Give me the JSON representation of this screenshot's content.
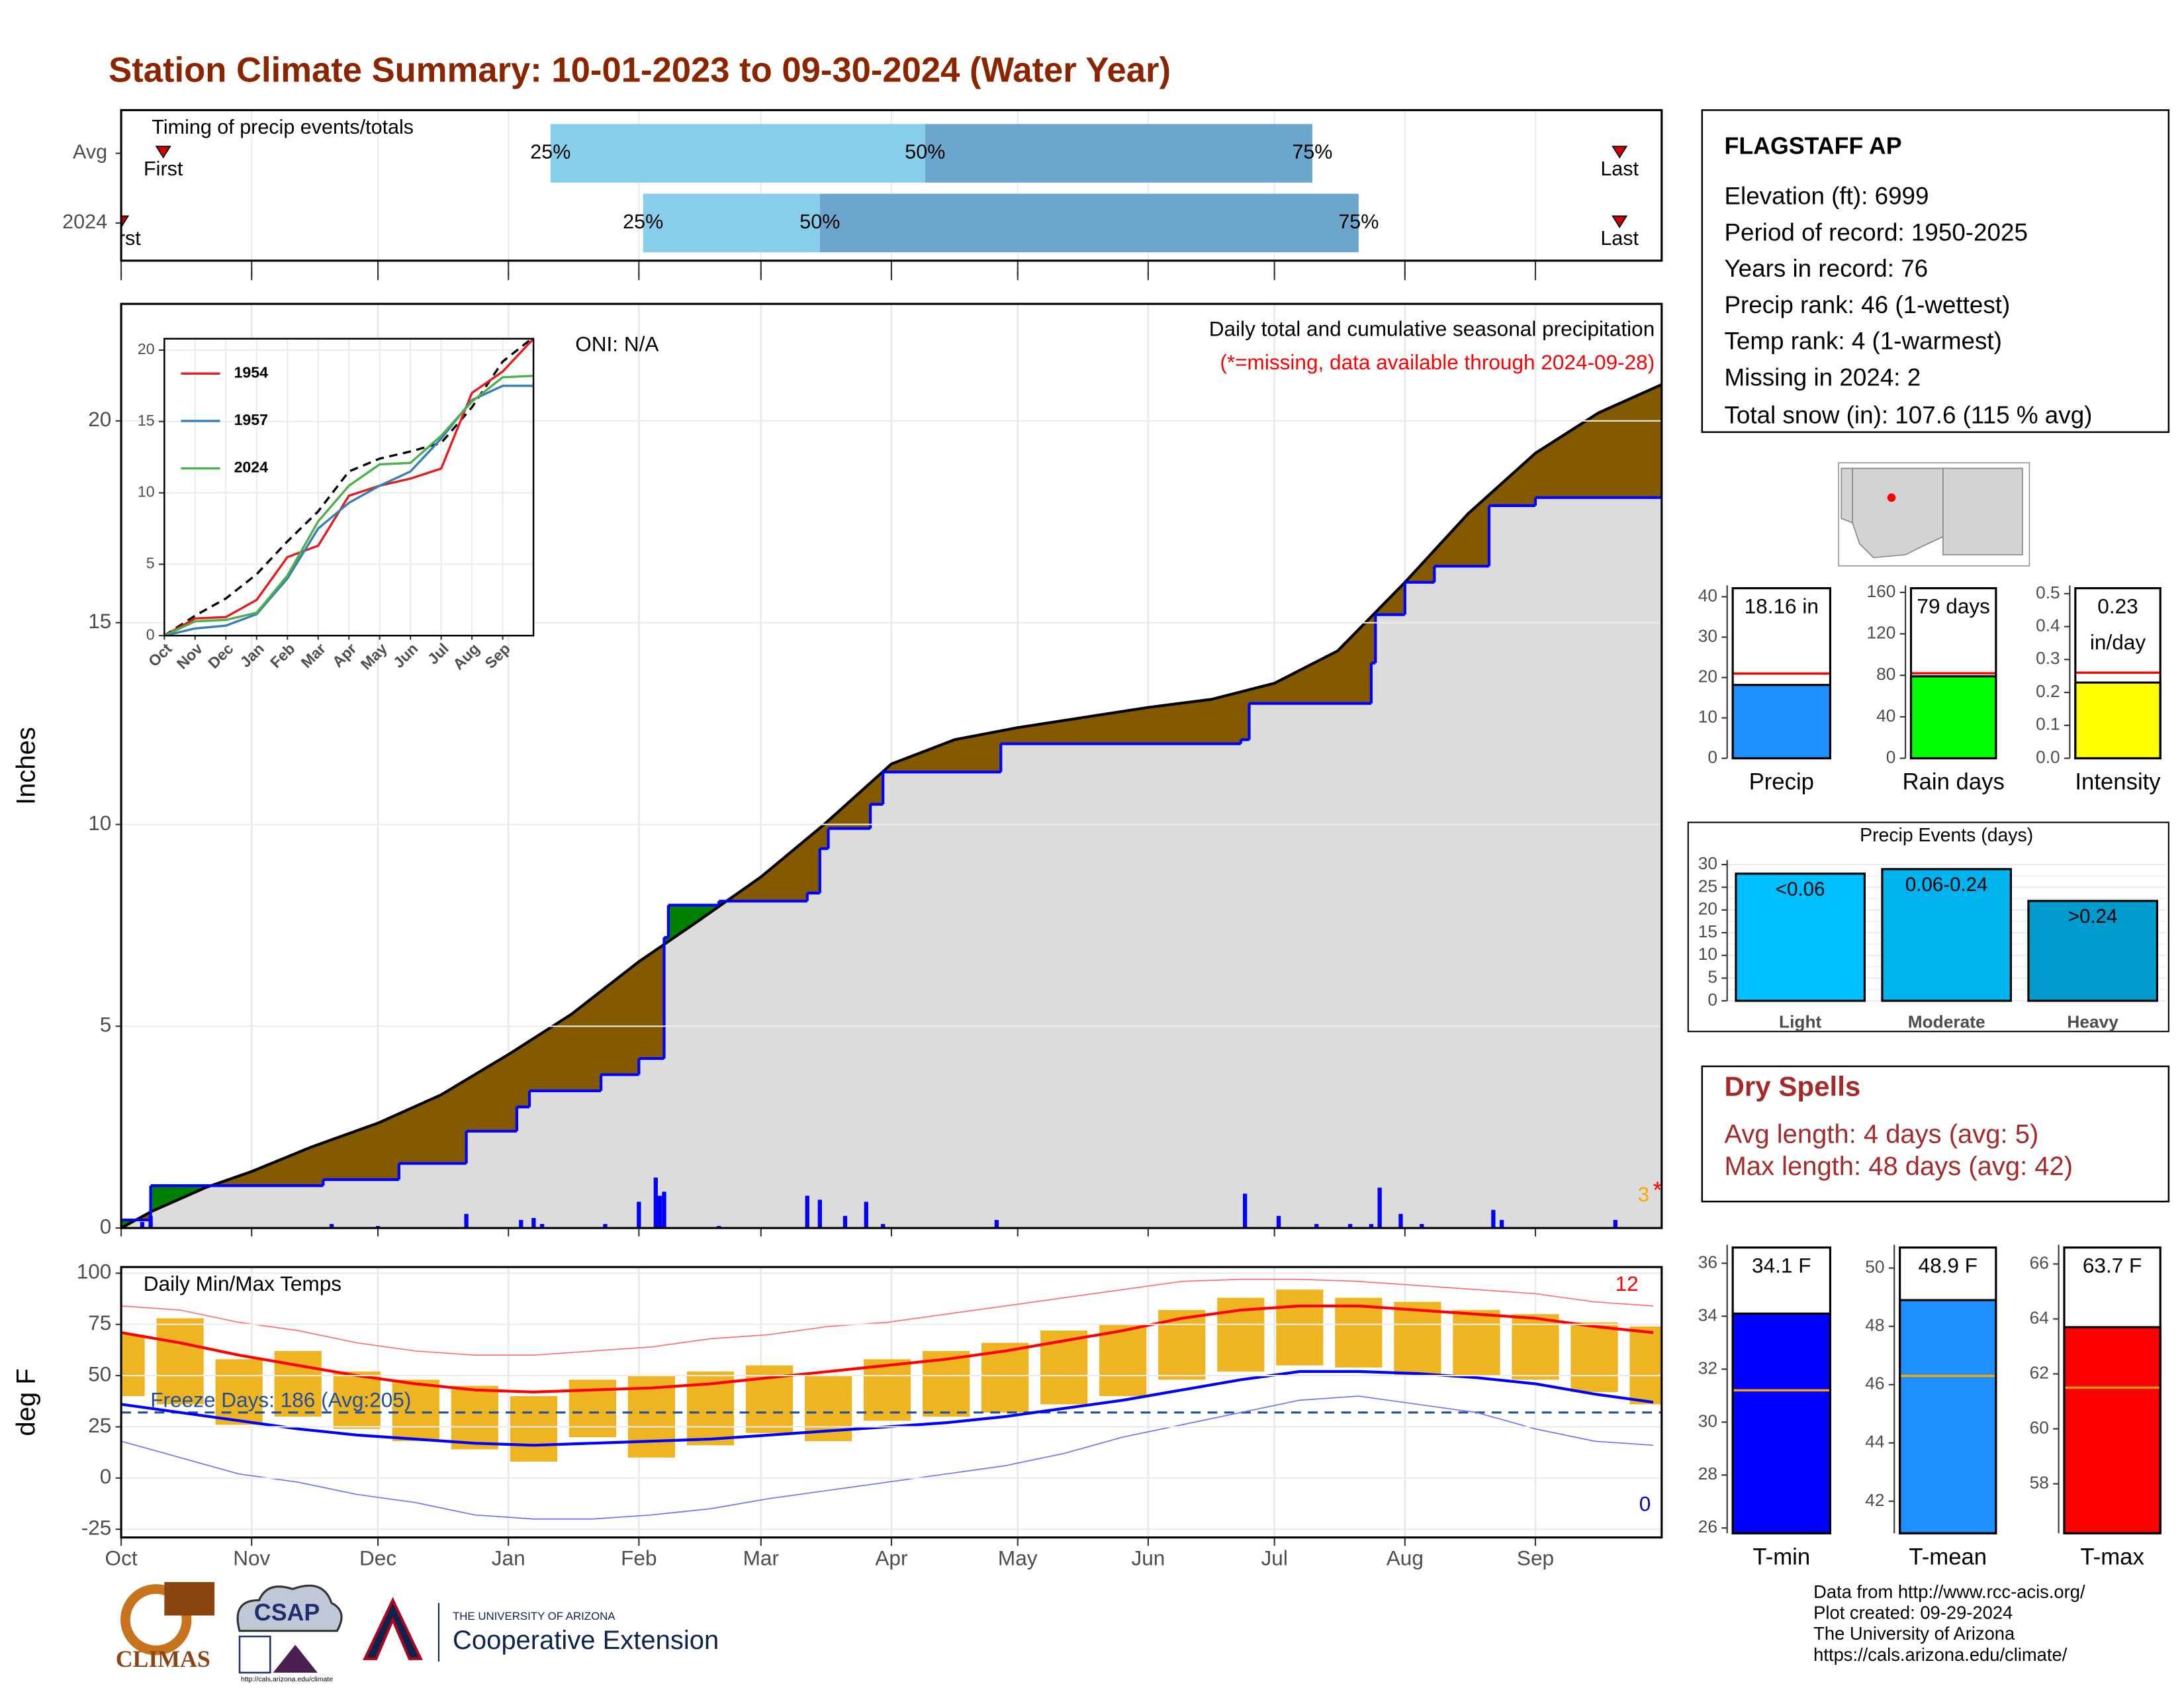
{
  "title": "Station Climate Summary: 10-01-2023 to 09-30-2024 (Water Year)",
  "chart_data": [
    {
      "type": "timeline",
      "title": "Timing of precip events/totals",
      "xlim": [
        0,
        366
      ],
      "xticks": [
        0,
        31,
        61,
        92,
        123,
        152,
        183,
        213,
        244,
        274,
        305,
        336
      ],
      "grid": true,
      "colors": [
        "#87ceeb",
        "#6ca6cd"
      ],
      "marker_color": "#cc0000",
      "labels": {
        "first": "First",
        "last": "Last",
        "p25": "25%",
        "p50": "50%",
        "p75": "75%"
      },
      "rows": [
        {
          "name": "Avg",
          "first": 10,
          "p25": 102,
          "p50": 191,
          "p75": 283,
          "last": 356
        },
        {
          "name": "2024",
          "first": 0,
          "p25": 124,
          "p50": 166,
          "p75": 294,
          "last": 356
        }
      ]
    },
    {
      "type": "cumulative",
      "y_label": "Inches",
      "oni": "ONI: N/A",
      "subtitle": "Daily total and cumulative seasonal precipitation",
      "missing_note": "(*=missing, data available through 2024-09-28)",
      "missing_count": "3",
      "missing_mark": "*",
      "xlim": [
        0,
        366
      ],
      "xticks": [
        0,
        31,
        61,
        92,
        123,
        152,
        183,
        213,
        244,
        274,
        305,
        336
      ],
      "ylim": [
        0,
        22.9
      ],
      "yticks": [
        0,
        5,
        10,
        15,
        20
      ],
      "grid": true,
      "colors": {
        "deficit": "#845a00",
        "surplus": "#008000",
        "base": "#dcdcdc"
      },
      "series": [
        {
          "kind": "average",
          "color": "#000000",
          "x": [
            0,
            7,
            20,
            31,
            45,
            61,
            76,
            92,
            107,
            123,
            137,
            152,
            167,
            183,
            198,
            213,
            244,
            259,
            274,
            289,
            305,
            320,
            336,
            351,
            366
          ],
          "values": [
            0,
            0.4,
            1.0,
            1.4,
            2.0,
            2.6,
            3.3,
            4.3,
            5.3,
            6.6,
            7.6,
            8.7,
            10.0,
            11.5,
            12.1,
            12.4,
            12.9,
            13.1,
            13.5,
            14.3,
            16.0,
            17.7,
            19.2,
            20.2,
            20.9
          ]
        },
        {
          "kind": "step",
          "color": "#0000ff",
          "x": [
            0,
            7,
            48,
            66,
            82,
            94,
            97,
            114,
            123,
            129,
            130,
            142,
            163,
            166,
            168,
            178,
            181,
            209,
            266,
            268,
            297,
            298,
            305,
            312,
            325,
            336,
            366
          ],
          "values": [
            0.2,
            1.05,
            1.2,
            1.6,
            2.4,
            3.0,
            3.4,
            3.8,
            4.2,
            7.2,
            8.0,
            8.1,
            8.3,
            9.4,
            9.9,
            10.5,
            11.3,
            12.0,
            12.1,
            13.0,
            14.0,
            15.2,
            16.0,
            16.4,
            17.9,
            18.1,
            18.16
          ]
        },
        {
          "kind": "bar",
          "color": "#0000ff",
          "x": [
            5,
            7,
            50,
            61,
            82,
            95,
            98,
            100,
            115,
            123,
            127,
            128,
            129,
            142,
            163,
            166,
            172,
            177,
            181,
            208,
            267,
            275,
            284,
            292,
            297,
            299,
            304,
            309,
            326,
            328,
            355
          ],
          "values": [
            0.15,
            0.3,
            0.1,
            0.05,
            0.35,
            0.2,
            0.25,
            0.1,
            0.1,
            0.65,
            1.25,
            0.8,
            0.9,
            0.05,
            0.8,
            0.7,
            0.3,
            0.65,
            0.1,
            0.2,
            0.85,
            0.3,
            0.1,
            0.1,
            0.1,
            1.0,
            0.35,
            0.1,
            0.45,
            0.2,
            0.2
          ]
        }
      ]
    },
    {
      "type": "line",
      "xlim": [
        0,
        12
      ],
      "xticks": [
        {
          "value": 0,
          "label": "Oct"
        },
        {
          "value": 1,
          "label": "Nov"
        },
        {
          "value": 2,
          "label": "Dec"
        },
        {
          "value": 3,
          "label": "Jan"
        },
        {
          "value": 4,
          "label": "Feb"
        },
        {
          "value": 5,
          "label": "Mar"
        },
        {
          "value": 6,
          "label": "Apr"
        },
        {
          "value": 7,
          "label": "May"
        },
        {
          "value": 8,
          "label": "Jun"
        },
        {
          "value": 9,
          "label": "Jul"
        },
        {
          "value": 10,
          "label": "Aug"
        },
        {
          "value": 11,
          "label": "Sep"
        }
      ],
      "ylim": [
        0,
        20.8
      ],
      "yticks": [
        0,
        5,
        10,
        15,
        20
      ],
      "grid": true,
      "legend": "top-left",
      "series": [
        {
          "color": "#000000",
          "dashed": true,
          "x": [
            0,
            1,
            2,
            3,
            4,
            5,
            6,
            7,
            8,
            9,
            10,
            11,
            12
          ],
          "values": [
            0,
            1.4,
            2.6,
            4.3,
            6.6,
            8.7,
            11.5,
            12.4,
            12.9,
            13.5,
            16.0,
            19.2,
            20.9
          ]
        },
        {
          "name": "1954",
          "color": "#e41a1c",
          "x": [
            0,
            1,
            2,
            3,
            4,
            5,
            6,
            7,
            8,
            9,
            10,
            11,
            12
          ],
          "values": [
            0,
            1.2,
            1.3,
            2.5,
            5.5,
            6.3,
            9.8,
            10.5,
            11.0,
            11.7,
            17.0,
            18.5,
            20.8
          ]
        },
        {
          "name": "1957",
          "color": "#377eb8",
          "x": [
            0,
            1,
            2,
            3,
            4,
            5,
            6,
            7,
            8,
            9,
            10,
            11,
            12
          ],
          "values": [
            0,
            0.5,
            0.7,
            1.5,
            4.0,
            7.5,
            9.3,
            10.5,
            11.5,
            13.8,
            16.5,
            17.5,
            17.5
          ]
        },
        {
          "name": "2024",
          "color": "#4daf4a",
          "x": [
            0,
            1,
            2,
            3,
            4,
            5,
            6,
            7,
            8,
            9,
            10,
            11,
            12
          ],
          "values": [
            0,
            1.0,
            1.1,
            1.6,
            4.2,
            8.0,
            10.5,
            12.0,
            12.1,
            14.0,
            16.4,
            18.1,
            18.2
          ]
        }
      ]
    },
    {
      "type": "temperature",
      "title": "Daily Min/Max Temps",
      "y_label": "deg F",
      "freeze_label": "Freeze Days: 186 (Avg:205)",
      "freeze_line": 32,
      "record_high_count": "12",
      "record_low_count": "0",
      "xlim": [
        0,
        366
      ],
      "xticks": [
        {
          "value": 0,
          "label": "Oct"
        },
        {
          "value": 31,
          "label": "Nov"
        },
        {
          "value": 61,
          "label": "Dec"
        },
        {
          "value": 92,
          "label": "Jan"
        },
        {
          "value": 123,
          "label": "Feb"
        },
        {
          "value": 152,
          "label": "Mar"
        },
        {
          "value": 183,
          "label": "Apr"
        },
        {
          "value": 213,
          "label": "May"
        },
        {
          "value": 244,
          "label": "Jun"
        },
        {
          "value": 274,
          "label": "Jul"
        },
        {
          "value": 305,
          "label": "Aug"
        },
        {
          "value": 336,
          "label": "Sep"
        }
      ],
      "ylim": [
        -29,
        103
      ],
      "yticks": [
        -25,
        0,
        25,
        50,
        75,
        100
      ],
      "grid": true,
      "x": [
        0,
        14,
        28,
        42,
        56,
        70,
        84,
        98,
        112,
        126,
        140,
        154,
        168,
        182,
        196,
        210,
        224,
        238,
        252,
        266,
        280,
        294,
        308,
        322,
        336,
        350,
        364
      ],
      "series": [
        {
          "role": "max",
          "color": "#eeb422",
          "values": [
            70,
            78,
            58,
            62,
            52,
            48,
            45,
            40,
            48,
            50,
            52,
            55,
            50,
            58,
            62,
            66,
            72,
            75,
            82,
            88,
            92,
            88,
            86,
            82,
            80,
            76,
            74
          ]
        },
        {
          "role": "min",
          "color": "#eeb422",
          "values": [
            40,
            36,
            26,
            30,
            24,
            18,
            14,
            8,
            20,
            10,
            16,
            22,
            18,
            28,
            30,
            32,
            36,
            40,
            48,
            52,
            55,
            54,
            50,
            50,
            48,
            42,
            36
          ]
        },
        {
          "role": "avg_high",
          "color": "#ff0000",
          "values": [
            71,
            66,
            60,
            55,
            50,
            46,
            43,
            42,
            43,
            44,
            46,
            49,
            52,
            55,
            58,
            62,
            67,
            72,
            78,
            82,
            84,
            84,
            82,
            80,
            78,
            74,
            71
          ]
        },
        {
          "role": "avg_low",
          "color": "#0000ff",
          "values": [
            36,
            32,
            28,
            24,
            21,
            19,
            17,
            16,
            17,
            18,
            19,
            21,
            23,
            25,
            27,
            30,
            34,
            38,
            43,
            48,
            52,
            52,
            51,
            49,
            46,
            41,
            37
          ]
        },
        {
          "role": "record_high",
          "color": "#ff7070",
          "values": [
            84,
            82,
            76,
            72,
            66,
            62,
            60,
            60,
            62,
            64,
            68,
            70,
            74,
            76,
            80,
            84,
            88,
            92,
            96,
            97,
            97,
            96,
            94,
            92,
            90,
            86,
            84
          ]
        },
        {
          "role": "record_low",
          "color": "#7070ff",
          "values": [
            18,
            10,
            2,
            -2,
            -8,
            -12,
            -18,
            -20,
            -20,
            -18,
            -15,
            -10,
            -6,
            -2,
            2,
            6,
            12,
            20,
            26,
            32,
            38,
            40,
            36,
            32,
            24,
            18,
            16
          ]
        }
      ]
    },
    {
      "type": "summary",
      "category": "Precip",
      "values": [
        18.16
      ],
      "value_labels": [
        "18.16 in"
      ],
      "average": 21.0,
      "color": "#1e90ff",
      "average_color": "#ff0000",
      "ylim": [
        0,
        42.8
      ],
      "yticks": [
        0,
        10,
        20,
        30,
        40
      ]
    },
    {
      "type": "summary",
      "category": "Rain days",
      "values": [
        79
      ],
      "value_labels": [
        "79 days"
      ],
      "average": 82,
      "color": "#00ff00",
      "average_color": "#ff0000",
      "ylim": [
        0,
        166.7
      ],
      "yticks": [
        0,
        40,
        80,
        120,
        160
      ]
    },
    {
      "type": "summary",
      "category": "Intensity",
      "values": [
        0.23
      ],
      "value_labels": [
        "0.23"
      ],
      "unit": "in/day",
      "average": 0.26,
      "color": "#ffff00",
      "average_color": "#ff0000",
      "ylim": [
        0,
        0.525
      ],
      "yticks": [
        {
          "value": 0,
          "label": "0.0"
        },
        0.1,
        0.2,
        0.3,
        0.4,
        0.5
      ]
    },
    {
      "type": "bar",
      "title": "Precip Events (days)",
      "categories": [
        "Light",
        "Moderate",
        "Heavy"
      ],
      "thresholds": [
        "<0.06",
        "0.06-0.24",
        ">0.24"
      ],
      "values": [
        28,
        29,
        22
      ],
      "colors": [
        "#00bfff",
        "#00b2ee",
        "#009acd"
      ],
      "ylim": [
        0,
        31
      ],
      "yticks": [
        0,
        5,
        10,
        15,
        20,
        25,
        30
      ],
      "grid": true
    },
    {
      "type": "summary",
      "category": "T-min",
      "values": [
        34.1
      ],
      "value_labels": [
        "34.1 F"
      ],
      "average": 31.2,
      "color": "#0000ff",
      "average_color": "#ffa500",
      "ylim": [
        25.8,
        36.7
      ],
      "yticks": [
        26,
        28,
        30,
        32,
        34,
        36
      ]
    },
    {
      "type": "summary",
      "category": "T-mean",
      "values": [
        48.9
      ],
      "value_labels": [
        "48.9 F"
      ],
      "average": 46.3,
      "color": "#1e90ff",
      "average_color": "#ffa500",
      "ylim": [
        40.9,
        50.8
      ],
      "yticks": [
        42,
        44,
        46,
        48,
        50
      ]
    },
    {
      "type": "summary",
      "category": "T-max",
      "values": [
        63.7
      ],
      "value_labels": [
        "63.7 F"
      ],
      "average": 61.5,
      "color": "#ff0000",
      "average_color": "#ffa500",
      "ylim": [
        56.2,
        66.7
      ],
      "yticks": [
        58,
        60,
        62,
        64,
        66
      ]
    }
  ],
  "station": {
    "name": "FLAGSTAFF AP",
    "lines": [
      "Elevation (ft): 6999",
      "Period of record: 1950-2025",
      "Years in record: 76",
      "Precip rank: 46 (1-wettest)",
      "Temp rank: 4 (1-warmest)",
      "Missing in 2024: 2",
      "Total snow (in): 107.6 (115 % avg)"
    ]
  },
  "dry_spells": {
    "title": "Dry Spells",
    "lines": [
      "Avg length: 4 days (avg: 5)",
      "Max length: 48 days (avg: 42)"
    ]
  },
  "credits": [
    "Data from http://www.rcc-acis.org/",
    "Plot created: 09-29-2024",
    "The University of Arizona",
    "https://cals.arizona.edu/climate/"
  ],
  "logos": {
    "climas": "CLIMAS",
    "csap": "CSAP",
    "csap_url": "http://cals.arizona.edu/climate",
    "ua_small": "THE UNIVERSITY OF ARIZONA",
    "ua_large": "Cooperative Extension"
  }
}
